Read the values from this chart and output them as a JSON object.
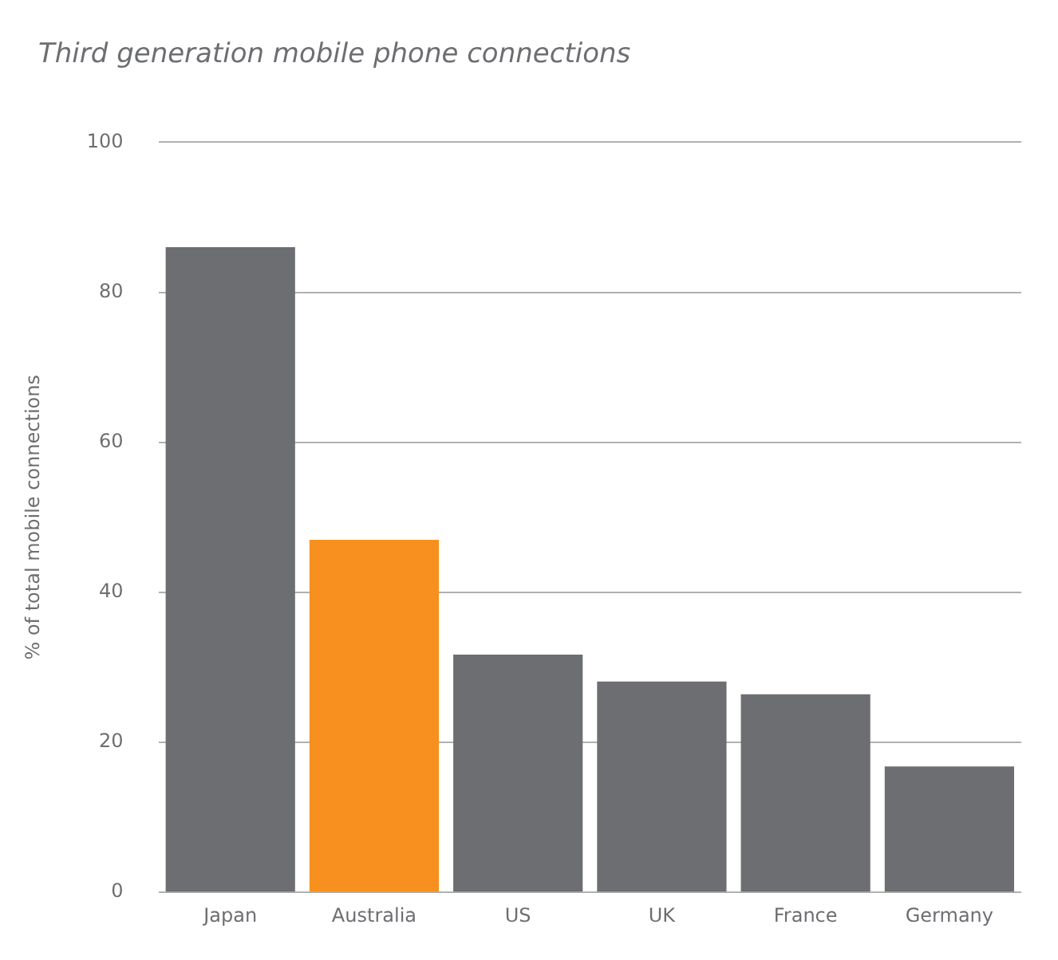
{
  "chart_data": {
    "type": "bar",
    "title": "Third generation mobile phone connections",
    "ylabel": "% of total mobile connections",
    "categories": [
      "Japan",
      "Australia",
      "US",
      "UK",
      "France",
      "Germany"
    ],
    "values": [
      86,
      47,
      31.7,
      28.1,
      26.4,
      16.8
    ],
    "colors": [
      "#6d6e71",
      "#f7901e",
      "#6d6e71",
      "#6d6e71",
      "#6d6e71",
      "#6d6e71"
    ],
    "ylim": [
      0,
      100
    ],
    "yticks": [
      0,
      20,
      40,
      60,
      80,
      100
    ],
    "grid": "y",
    "legend": false
  }
}
